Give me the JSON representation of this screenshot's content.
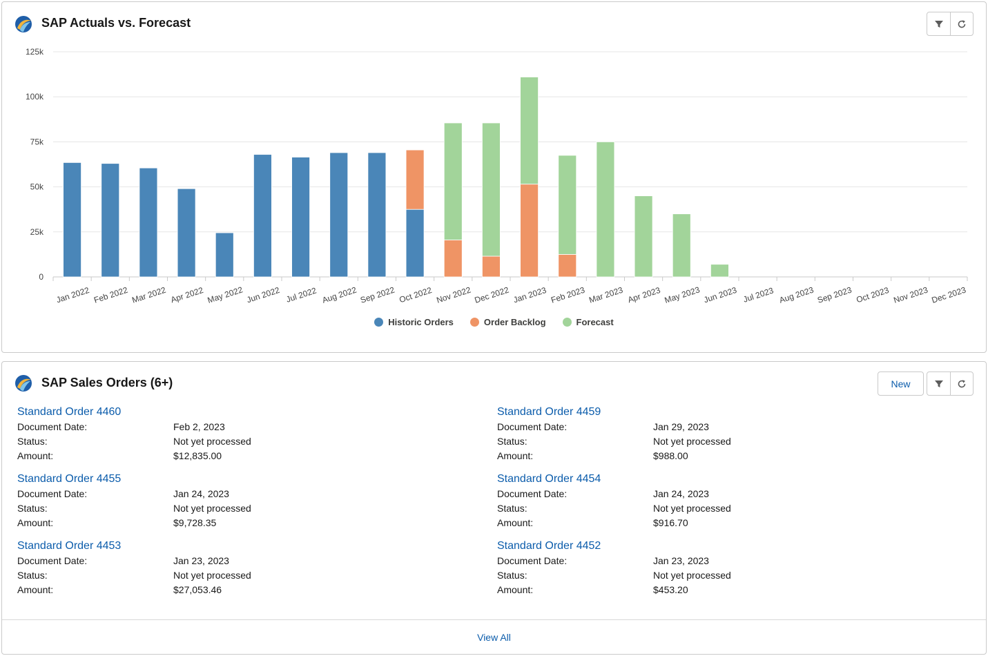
{
  "chart_card": {
    "title": "SAP Actuals vs. Forecast",
    "icon": "sap-logo-icon"
  },
  "orders_card": {
    "title": "SAP Sales Orders (6+)",
    "icon": "sap-logo-icon",
    "new_label": "New",
    "view_all_label": "View All",
    "field_labels": {
      "document_date": "Document Date:",
      "status": "Status:",
      "amount": "Amount:"
    },
    "orders": [
      {
        "name": "Standard Order 4460",
        "document_date": "Feb 2, 2023",
        "status": "Not yet processed",
        "amount": "$12,835.00"
      },
      {
        "name": "Standard Order 4459",
        "document_date": "Jan 29, 2023",
        "status": "Not yet processed",
        "amount": "$988.00"
      },
      {
        "name": "Standard Order 4455",
        "document_date": "Jan 24, 2023",
        "status": "Not yet processed",
        "amount": "$9,728.35"
      },
      {
        "name": "Standard Order 4454",
        "document_date": "Jan 24, 2023",
        "status": "Not yet processed",
        "amount": "$916.70"
      },
      {
        "name": "Standard Order 4453",
        "document_date": "Jan 23, 2023",
        "status": "Not yet processed",
        "amount": "$27,053.46"
      },
      {
        "name": "Standard Order 4452",
        "document_date": "Jan 23, 2023",
        "status": "Not yet processed",
        "amount": "$453.20"
      }
    ]
  },
  "colors": {
    "historic": "#4a86b8",
    "backlog": "#ef9465",
    "forecast": "#a2d49a",
    "link": "#0b5cab"
  },
  "chart_data": {
    "type": "bar",
    "stacked": true,
    "title": "SAP Actuals vs. Forecast",
    "categories": [
      "Jan 2022",
      "Feb 2022",
      "Mar 2022",
      "Apr 2022",
      "May 2022",
      "Jun 2022",
      "Jul 2022",
      "Aug 2022",
      "Sep 2022",
      "Oct 2022",
      "Nov 2022",
      "Dec 2022",
      "Jan 2023",
      "Feb 2023",
      "Mar 2023",
      "Apr 2023",
      "May 2023",
      "Jun 2023",
      "Jul 2023",
      "Aug 2023",
      "Sep 2023",
      "Oct 2023",
      "Nov 2023",
      "Dec 2023"
    ],
    "series": [
      {
        "name": "Historic Orders",
        "color": "#4a86b8",
        "values": [
          63500,
          63000,
          60500,
          49000,
          24500,
          68000,
          66500,
          69000,
          69000,
          37500,
          0,
          0,
          0,
          0,
          0,
          0,
          0,
          0,
          0,
          0,
          0,
          0,
          0,
          0
        ]
      },
      {
        "name": "Order Backlog",
        "color": "#ef9465",
        "values": [
          0,
          0,
          0,
          0,
          0,
          0,
          0,
          0,
          0,
          33000,
          20500,
          11500,
          51500,
          12500,
          0,
          0,
          0,
          0,
          0,
          0,
          0,
          0,
          0,
          0
        ]
      },
      {
        "name": "Forecast",
        "color": "#a2d49a",
        "values": [
          0,
          0,
          0,
          0,
          0,
          0,
          0,
          0,
          0,
          0,
          65000,
          74000,
          59500,
          55000,
          75000,
          45000,
          35000,
          7000,
          0,
          0,
          0,
          0,
          0,
          0
        ]
      }
    ],
    "y_ticks": [
      "0",
      "25k",
      "50k",
      "75k",
      "100k",
      "125k"
    ],
    "y_tick_values": [
      0,
      25000,
      50000,
      75000,
      100000,
      125000
    ],
    "ylim": [
      0,
      125000
    ],
    "grid": true,
    "legend_position": "bottom-center"
  }
}
